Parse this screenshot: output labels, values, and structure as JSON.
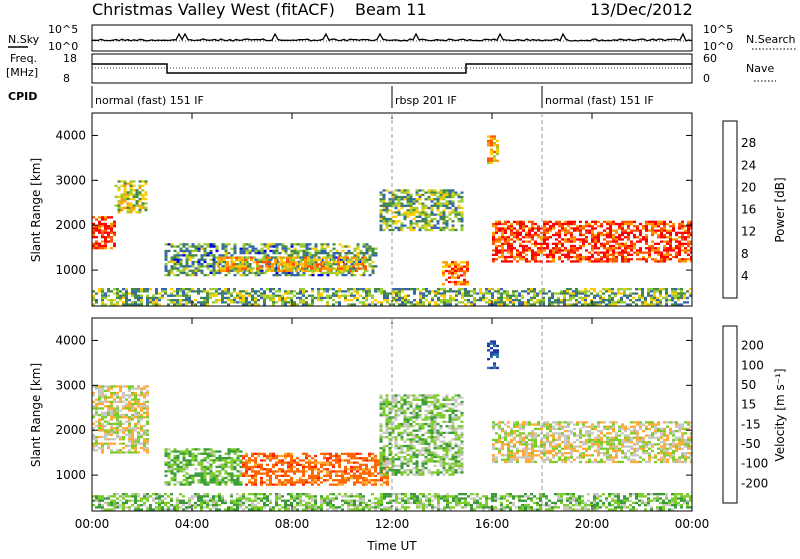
{
  "header": {
    "station": "Christmas Valley West (fitACF)",
    "beam": "Beam 11",
    "date": "13/Dec/2012"
  },
  "noise_panel": {
    "left_label": "N.Sky",
    "right_label": "N.Search",
    "left_ticks": [
      "10^5",
      "10^0"
    ],
    "right_ticks": [
      "10^5",
      "10^0"
    ]
  },
  "freq_panel": {
    "left_label_1": "Freq.",
    "left_label_2": "[MHz]",
    "right_label": "Nave",
    "left_ticks": [
      "18",
      "8"
    ],
    "right_ticks": [
      "60",
      "0"
    ]
  },
  "cpid": {
    "label": "CPID",
    "segments": [
      {
        "text": "normal (fast) 151 IF",
        "start_hour": 0
      },
      {
        "text": "rbsp 201 IF",
        "start_hour": 12
      },
      {
        "text": "normal (fast) 151 IF",
        "start_hour": 18
      }
    ]
  },
  "chart_data": [
    {
      "type": "heatmap",
      "name": "power",
      "ylabel": "Slant Range [km]",
      "xlabel": "",
      "ylim": [
        200,
        4500
      ],
      "y_ticks": [
        "4000",
        "3000",
        "2000",
        "1000"
      ],
      "colorbar": {
        "label": "Power [dB]",
        "ticks": [
          "28",
          "24",
          "20",
          "16",
          "12",
          "8",
          "4"
        ],
        "colors": [
          "#ff0000",
          "#ff5500",
          "#ff9900",
          "#ffcc00",
          "#99cc33",
          "#448844",
          "#3366aa",
          "#0000ee"
        ]
      },
      "echo_regions": [
        {
          "hours": [
            0.0,
            0.9
          ],
          "range_km": [
            1500,
            2200
          ],
          "level_db": 28
        },
        {
          "hours": [
            0.9,
            2.2
          ],
          "range_km": [
            2300,
            3000
          ],
          "level_db": 16
        },
        {
          "hours": [
            2.9,
            11.4
          ],
          "range_km": [
            900,
            1600
          ],
          "level_db": 10
        },
        {
          "hours": [
            5.0,
            11.0
          ],
          "range_km": [
            1000,
            1300
          ],
          "level_db": 20
        },
        {
          "hours": [
            11.5,
            14.8
          ],
          "range_km": [
            1900,
            2800
          ],
          "level_db": 12
        },
        {
          "hours": [
            14.0,
            15.0
          ],
          "range_km": [
            700,
            1200
          ],
          "level_db": 24
        },
        {
          "hours": [
            15.8,
            16.2
          ],
          "range_km": [
            3400,
            4000
          ],
          "level_db": 20
        },
        {
          "hours": [
            16.0,
            24.0
          ],
          "range_km": [
            1200,
            2100
          ],
          "level_db": 28
        },
        {
          "hours": [
            0.0,
            24.0
          ],
          "range_km": [
            200,
            600
          ],
          "level_db": 12
        }
      ]
    },
    {
      "type": "heatmap",
      "name": "velocity",
      "ylabel": "Slant Range [km]",
      "xlabel": "Time UT",
      "ylim": [
        200,
        4500
      ],
      "y_ticks": [
        "4000",
        "3000",
        "2000",
        "1000"
      ],
      "x_ticks": [
        "00:00",
        "04:00",
        "08:00",
        "12:00",
        "16:00",
        "20:00",
        "00:00"
      ],
      "colorbar": {
        "label": "Velocity [m s⁻¹]",
        "ticks": [
          "200",
          "100",
          "50",
          "15",
          "-15",
          "-50",
          "-100",
          "-200"
        ],
        "colors": [
          "#1a3aa8",
          "#2f77a8",
          "#3a9a3a",
          "#7ccc2a",
          "#c8c8c0",
          "#ffaa33",
          "#ff6600",
          "#ff2200",
          "#ee0000"
        ]
      },
      "echo_regions": [
        {
          "hours": [
            0.0,
            2.2
          ],
          "range_km": [
            1500,
            3000
          ],
          "velocity": 0
        },
        {
          "hours": [
            2.9,
            6.0
          ],
          "range_km": [
            800,
            1600
          ],
          "velocity": 50
        },
        {
          "hours": [
            6.0,
            11.8
          ],
          "range_km": [
            800,
            1500
          ],
          "velocity": -80
        },
        {
          "hours": [
            11.5,
            14.8
          ],
          "range_km": [
            1000,
            2800
          ],
          "velocity": 30
        },
        {
          "hours": [
            15.8,
            16.2
          ],
          "range_km": [
            3400,
            4000
          ],
          "velocity": 220
        },
        {
          "hours": [
            16.0,
            24.0
          ],
          "range_km": [
            1300,
            2200
          ],
          "velocity": 0
        },
        {
          "hours": [
            0.0,
            24.0
          ],
          "range_km": [
            200,
            600
          ],
          "velocity": 40
        }
      ]
    }
  ]
}
